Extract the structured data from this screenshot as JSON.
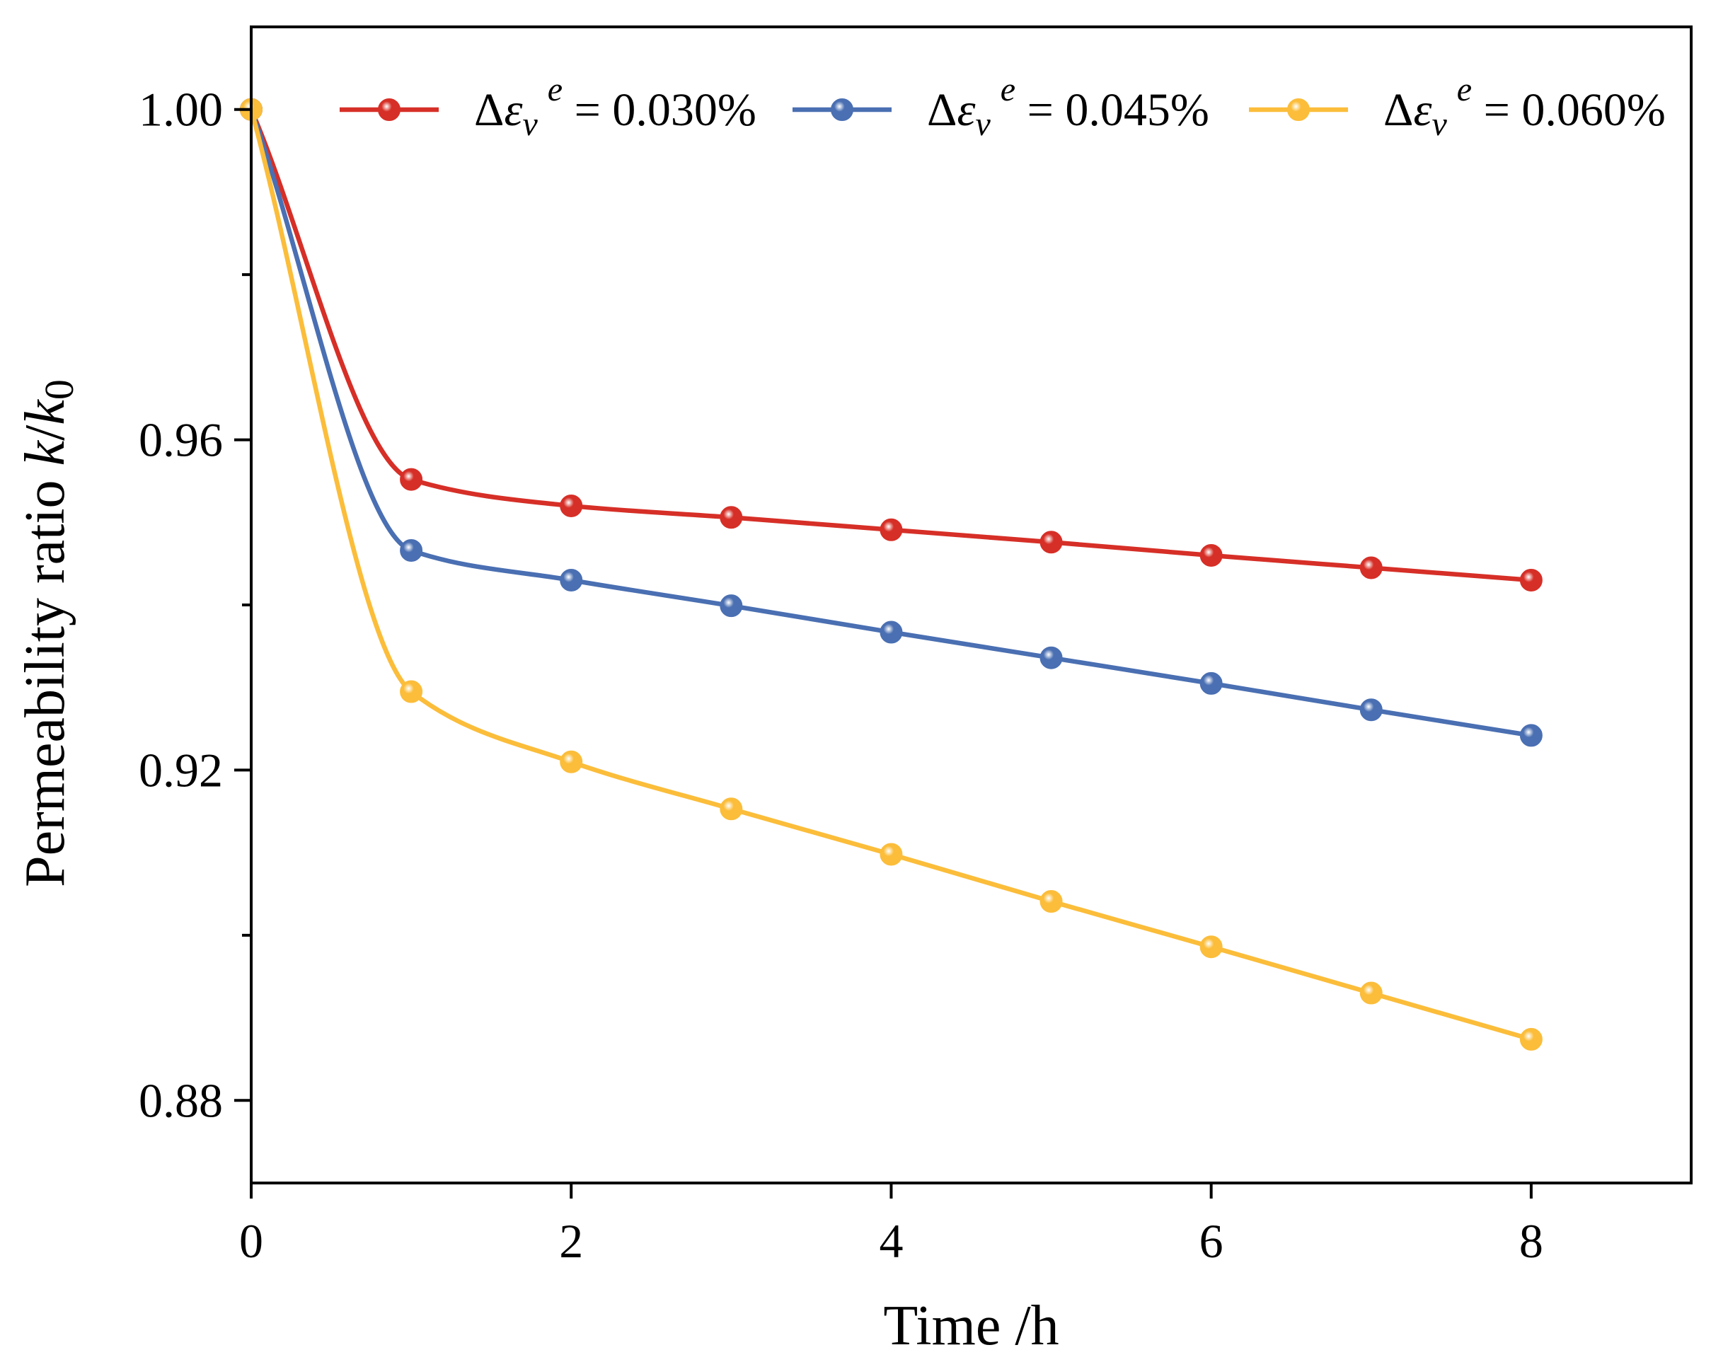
{
  "chart_data": {
    "type": "line",
    "title": "",
    "xlabel": "Time /h",
    "ylabel": {
      "prefix": "Permeability ratio ",
      "k": "k",
      "slash": "/",
      "k0": "k",
      "sub": "0"
    },
    "xlim": [
      0,
      9
    ],
    "ylim": [
      0.87,
      1.01
    ],
    "xticks": [
      0,
      2,
      4,
      6,
      8
    ],
    "xtick_labels": [
      "0",
      "2",
      "4",
      "6",
      "8"
    ],
    "yticks": [
      0.88,
      0.92,
      0.96,
      1.0
    ],
    "ytick_labels": [
      "0.88",
      "0.92",
      "0.96",
      "1.00"
    ],
    "yminor_ticks": [
      0.9,
      0.94,
      0.98
    ],
    "legend_position": "top",
    "series": [
      {
        "name": "Δε_v^e = 0.030%",
        "label": {
          "delta": "Δ",
          "eps": "ε",
          "sub": "v",
          "sup": "e",
          "value": " = 0.030%"
        },
        "color": "#d62f27",
        "x": [
          0,
          1,
          2,
          3,
          4,
          5,
          6,
          7,
          8
        ],
        "y": [
          1.0,
          0.9552,
          0.952,
          0.9506,
          0.9491,
          0.9476,
          0.946,
          0.9445,
          0.943
        ]
      },
      {
        "name": "Δε_v^e = 0.045%",
        "label": {
          "delta": "Δ",
          "eps": "ε",
          "sub": "v",
          "sup": "e",
          "value": " = 0.045%"
        },
        "color": "#4a6fb2",
        "x": [
          0,
          1,
          2,
          3,
          4,
          5,
          6,
          7,
          8
        ],
        "y": [
          1.0,
          0.9466,
          0.943,
          0.9399,
          0.9367,
          0.9336,
          0.9305,
          0.9273,
          0.9242
        ]
      },
      {
        "name": "Δε_v^e = 0.060%",
        "label": {
          "delta": "Δ",
          "eps": "ε",
          "sub": "v",
          "sup": "e",
          "value": " = 0.060%"
        },
        "color": "#fbbd3a",
        "x": [
          0,
          1,
          2,
          3,
          4,
          5,
          6,
          7,
          8
        ],
        "y": [
          1.0,
          0.9295,
          0.921,
          0.9153,
          0.9098,
          0.9041,
          0.8986,
          0.893,
          0.8874
        ]
      }
    ]
  }
}
